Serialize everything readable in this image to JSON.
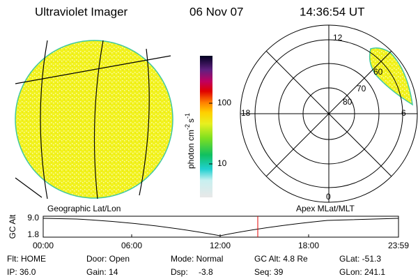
{
  "header": {
    "title": "Ultraviolet Imager",
    "date": "06 Nov 07",
    "time": "14:36:54 UT"
  },
  "colorbar": {
    "label": "photon cm",
    "exp1": "-2",
    "unit2": "s",
    "exp2": "-1",
    "ticks": [
      "100",
      "10"
    ]
  },
  "polar": {
    "mlt_labels": [
      "12",
      "18",
      "6",
      "0"
    ],
    "lat_labels": [
      "80",
      "70",
      "60"
    ]
  },
  "altitude": {
    "ylabel": "GC Alt",
    "yticks": [
      "9.0",
      "1.8"
    ],
    "left_caption": "Geographic Lat/Lon",
    "right_caption": "Apex MLat/MLT",
    "xticks": [
      "00:00",
      "06:00",
      "12:00",
      "18:00",
      "23:59"
    ]
  },
  "status": {
    "rows": [
      [
        "Flt: HOME",
        "Door: Open",
        "Mode: Normal",
        "GC Alt: 4.8 Re",
        "GLat: -51.3"
      ],
      [
        "IP: 36.0",
        "Gain: 14",
        "Dsp:",
        "-3.8",
        "Seq: 39",
        "GLon: 241.1"
      ]
    ]
  }
}
